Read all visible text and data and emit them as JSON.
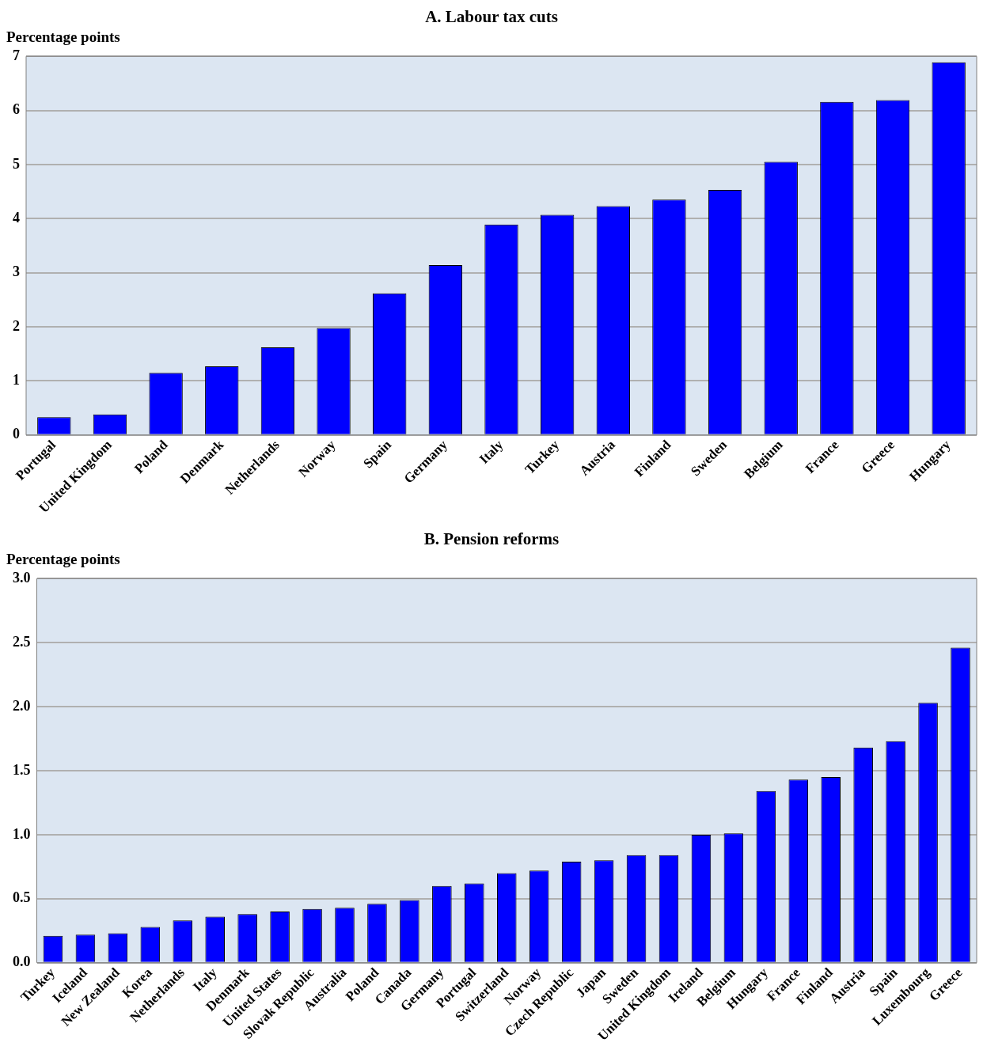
{
  "chart_data": [
    {
      "type": "bar",
      "title": "A. Labour tax cuts",
      "ylabel": "Percentage points",
      "categories": [
        "Portugal",
        "United Kingdom",
        "Poland",
        "Denmark",
        "Netherlands",
        "Norway",
        "Spain",
        "Germany",
        "Italy",
        "Turkey",
        "Austria",
        "Finland",
        "Sweden",
        "Belgium",
        "France",
        "Greece",
        "Hungary"
      ],
      "values": [
        0.33,
        0.38,
        1.15,
        1.27,
        1.62,
        1.98,
        2.62,
        3.14,
        3.89,
        4.07,
        4.23,
        4.35,
        4.53,
        5.05,
        6.16,
        6.19,
        6.89
      ],
      "color": "#0000ff",
      "ylim": [
        0,
        7
      ],
      "yticks": [
        0,
        1,
        2,
        3,
        4,
        5,
        6,
        7
      ],
      "grid": "y",
      "legend": false
    },
    {
      "type": "bar",
      "title": "B. Pension reforms",
      "ylabel": "Percentage points",
      "categories": [
        "Turkey",
        "Iceland",
        "New Zealand",
        "Korea",
        "Netherlands",
        "Italy",
        "Denmark",
        "United States",
        "Slovak Republic",
        "Australia",
        "Poland",
        "Canada",
        "Germany",
        "Portugal",
        "Switzerland",
        "Norway",
        "Czech Republic",
        "Japan",
        "Sweden",
        "United Kingdom",
        "Ireland",
        "Belgium",
        "Hungary",
        "France",
        "Finland",
        "Austria",
        "Spain",
        "Luxembourg",
        "Greece"
      ],
      "values": [
        0.21,
        0.22,
        0.23,
        0.28,
        0.33,
        0.36,
        0.38,
        0.4,
        0.42,
        0.43,
        0.46,
        0.49,
        0.6,
        0.62,
        0.7,
        0.72,
        0.79,
        0.8,
        0.84,
        0.84,
        1.0,
        1.01,
        1.34,
        1.43,
        1.45,
        1.68,
        1.73,
        2.03,
        2.46
      ],
      "color": "#0000ff",
      "ylim": [
        0,
        3
      ],
      "yticks": [
        {
          "value": 0,
          "label": "0.0"
        },
        {
          "value": 0.5,
          "label": "0.5"
        },
        {
          "value": 1,
          "label": "1.0"
        },
        {
          "value": 1.5,
          "label": "1.5"
        },
        {
          "value": 2,
          "label": "2.0"
        },
        {
          "value": 2.5,
          "label": "2.5"
        },
        {
          "value": 3,
          "label": "3.0"
        }
      ],
      "grid": "y",
      "legend": false
    }
  ]
}
